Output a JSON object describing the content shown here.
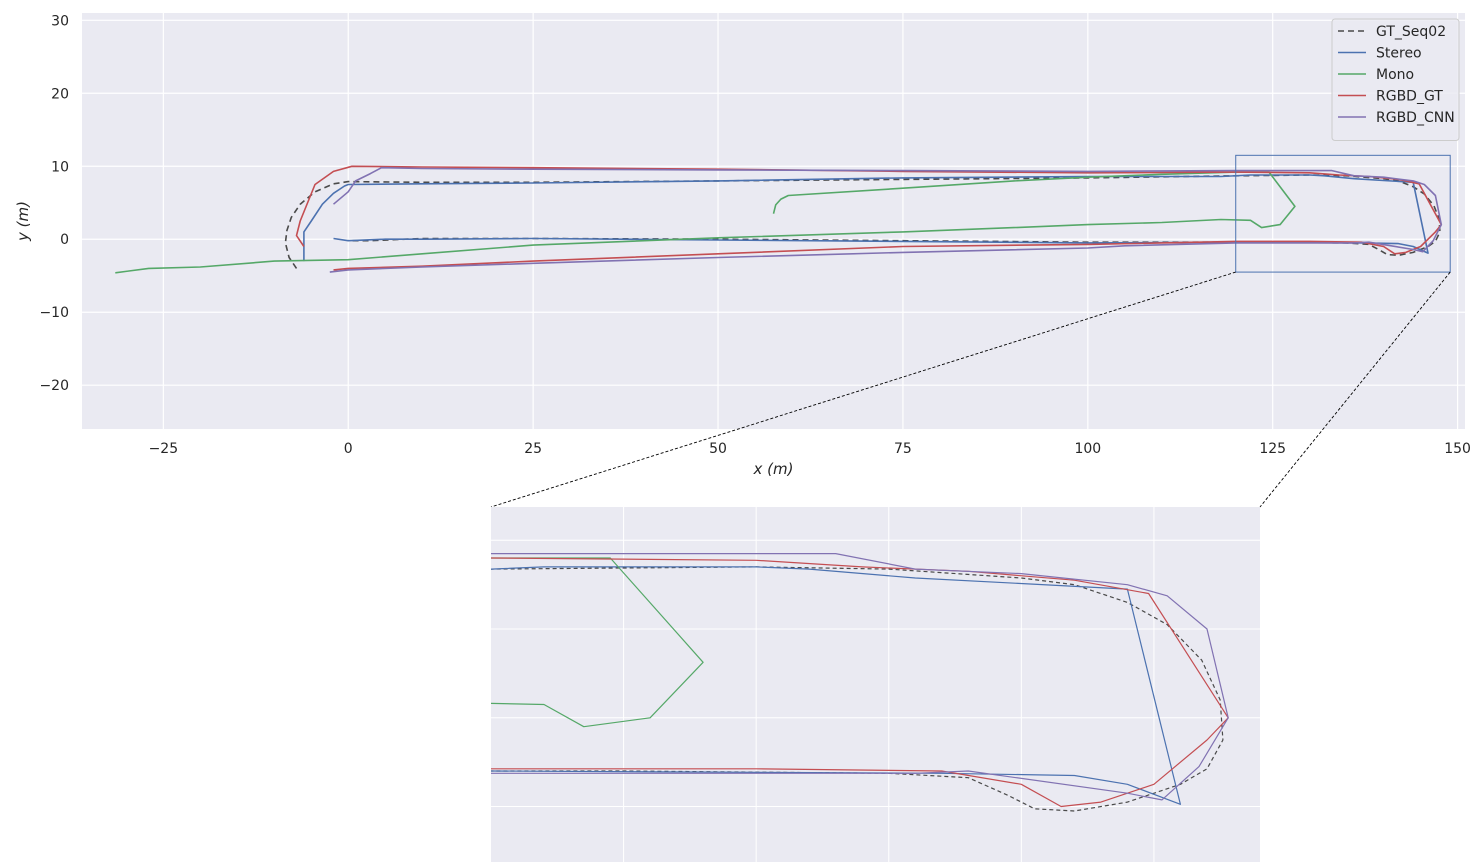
{
  "chart_data": {
    "type": "line",
    "xlabel": "x (m)",
    "ylabel": "y (m)",
    "xlim": [
      -36,
      151
    ],
    "ylim": [
      -26,
      31
    ],
    "xticks": [
      -25,
      0,
      25,
      50,
      75,
      100,
      125,
      150
    ],
    "yticks": [
      -20,
      -10,
      0,
      10,
      20,
      30
    ],
    "grid": true,
    "legend": "top-right",
    "inset": {
      "xlim": [
        120,
        149
      ],
      "ylim": [
        -4.5,
        11.5
      ],
      "zoom_box_color": "#4c72b0"
    },
    "series": [
      {
        "name": "GT_Seq02",
        "color": "#4a4a4a",
        "dashed": true,
        "points": [
          [
            -7,
            -4
          ],
          [
            -8,
            -2.5
          ],
          [
            -8.5,
            -0.5
          ],
          [
            -8.3,
            1.2
          ],
          [
            -7.7,
            3
          ],
          [
            -6.5,
            4.8
          ],
          [
            -4.5,
            6.5
          ],
          [
            -2,
            7.6
          ],
          [
            0,
            7.9
          ],
          [
            10,
            7.8
          ],
          [
            25,
            7.8
          ],
          [
            50,
            8
          ],
          [
            75,
            8.2
          ],
          [
            100,
            8.4
          ],
          [
            120,
            8.7
          ],
          [
            130,
            8.8
          ],
          [
            135,
            8.7
          ],
          [
            140,
            8.3
          ],
          [
            142,
            8
          ],
          [
            144,
            7.2
          ],
          [
            145.5,
            6.2
          ],
          [
            146.8,
            4.6
          ],
          [
            147.5,
            2.8
          ],
          [
            147.6,
            1
          ],
          [
            147,
            -0.3
          ],
          [
            146,
            -1
          ],
          [
            144,
            -1.8
          ],
          [
            142,
            -2.2
          ],
          [
            140.5,
            -2.1
          ],
          [
            139.5,
            -1.5
          ],
          [
            138,
            -0.7
          ],
          [
            135,
            -0.5
          ],
          [
            125,
            -0.4
          ],
          [
            100,
            -0.4
          ],
          [
            75,
            -0.2
          ],
          [
            50,
            0
          ],
          [
            25,
            0.1
          ],
          [
            10,
            0.1
          ],
          [
            3,
            -0.2
          ],
          [
            0,
            -0.2
          ]
        ]
      },
      {
        "name": "Stereo",
        "color": "#4c72b0",
        "dashed": false,
        "points": [
          [
            -6,
            -3
          ],
          [
            -6,
            1
          ],
          [
            -5,
            2.5
          ],
          [
            -3.5,
            4.8
          ],
          [
            -2,
            6.3
          ],
          [
            -0.5,
            7.3
          ],
          [
            0,
            7.5
          ],
          [
            10,
            7.6
          ],
          [
            25,
            7.7
          ],
          [
            50,
            8
          ],
          [
            75,
            8.4
          ],
          [
            100,
            8.6
          ],
          [
            118,
            8.6
          ],
          [
            122,
            8.8
          ],
          [
            130,
            8.8
          ],
          [
            132,
            8.7
          ],
          [
            136,
            8.3
          ],
          [
            144,
            7.8
          ],
          [
            146,
            -1.9
          ],
          [
            144,
            -1
          ],
          [
            142,
            -0.6
          ],
          [
            137,
            -0.5
          ],
          [
            120,
            -0.4
          ],
          [
            100,
            -0.5
          ],
          [
            75,
            -0.3
          ],
          [
            50,
            -0.1
          ],
          [
            25,
            0.1
          ],
          [
            10,
            0
          ],
          [
            5,
            0
          ],
          [
            0,
            -0.2
          ],
          [
            -2,
            0.1
          ]
        ]
      },
      {
        "name": "Mono",
        "color": "#55a868",
        "dashed": false,
        "points": [
          [
            57.5,
            3.5
          ],
          [
            57.8,
            4.7
          ],
          [
            58.5,
            5.5
          ],
          [
            59.5,
            6
          ],
          [
            75,
            7
          ],
          [
            90,
            8
          ],
          [
            100,
            8.5
          ],
          [
            110,
            8.9
          ],
          [
            120,
            9.2
          ],
          [
            124.5,
            9.2
          ],
          [
            128,
            4.5
          ],
          [
            126,
            2
          ],
          [
            123.5,
            1.6
          ],
          [
            122,
            2.6
          ],
          [
            118,
            2.7
          ],
          [
            110,
            2.3
          ],
          [
            100,
            2
          ],
          [
            90,
            1.6
          ],
          [
            75,
            1
          ],
          [
            50,
            0.2
          ],
          [
            25,
            -0.8
          ],
          [
            10,
            -2
          ],
          [
            0,
            -2.8
          ],
          [
            -10,
            -3
          ],
          [
            -20,
            -3.8
          ],
          [
            -27,
            -4
          ],
          [
            -31.5,
            -4.6
          ]
        ]
      },
      {
        "name": "RGBD_GT",
        "color": "#c44e52",
        "dashed": false,
        "points": [
          [
            -6,
            -1
          ],
          [
            -7,
            0.5
          ],
          [
            -6.5,
            2.5
          ],
          [
            -4.5,
            7.5
          ],
          [
            -2,
            9.3
          ],
          [
            0.5,
            10
          ],
          [
            10,
            9.9
          ],
          [
            25,
            9.8
          ],
          [
            50,
            9.6
          ],
          [
            75,
            9.3
          ],
          [
            100,
            9.1
          ],
          [
            120,
            9.2
          ],
          [
            130,
            9.1
          ],
          [
            134,
            8.8
          ],
          [
            138,
            8.6
          ],
          [
            142,
            8.2
          ],
          [
            144.8,
            7.6
          ],
          [
            147.8,
            2
          ],
          [
            147,
            1
          ],
          [
            145,
            -1
          ],
          [
            143,
            -1.8
          ],
          [
            141.5,
            -2
          ],
          [
            140,
            -1
          ],
          [
            137,
            -0.4
          ],
          [
            130,
            -0.3
          ],
          [
            120,
            -0.3
          ],
          [
            100,
            -0.7
          ],
          [
            75,
            -1
          ],
          [
            50,
            -2
          ],
          [
            25,
            -3
          ],
          [
            10,
            -3.7
          ],
          [
            0,
            -4
          ],
          [
            -2,
            -4.2
          ]
        ]
      },
      {
        "name": "RGBD_CNN",
        "color": "#8172b2",
        "dashed": false,
        "points": [
          [
            -2,
            4.8
          ],
          [
            0,
            6.5
          ],
          [
            1,
            8
          ],
          [
            3,
            9
          ],
          [
            4.5,
            9.8
          ],
          [
            10,
            9.7
          ],
          [
            25,
            9.6
          ],
          [
            50,
            9.5
          ],
          [
            75,
            9.4
          ],
          [
            100,
            9.3
          ],
          [
            120,
            9.4
          ],
          [
            130,
            9.4
          ],
          [
            133,
            9.4
          ],
          [
            136,
            8.7
          ],
          [
            140,
            8.5
          ],
          [
            144,
            8
          ],
          [
            145.5,
            7.5
          ],
          [
            147,
            6
          ],
          [
            147.8,
            2
          ],
          [
            146.7,
            -0.2
          ],
          [
            145.3,
            -1.7
          ],
          [
            144,
            -1.4
          ],
          [
            138,
            -0.4
          ],
          [
            136,
            -0.5
          ],
          [
            130,
            -0.5
          ],
          [
            120,
            -0.5
          ],
          [
            105,
            -0.9
          ],
          [
            100,
            -1.2
          ],
          [
            75,
            -1.8
          ],
          [
            50,
            -2.5
          ],
          [
            25,
            -3.3
          ],
          [
            10,
            -3.8
          ],
          [
            0,
            -4.2
          ],
          [
            -2.5,
            -4.5
          ]
        ]
      }
    ]
  }
}
